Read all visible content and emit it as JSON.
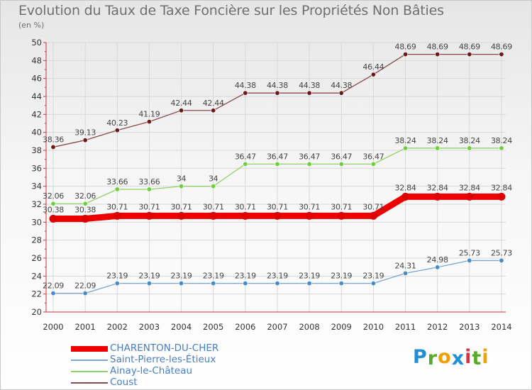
{
  "header": {
    "title": "Evolution du Taux de Taxe Foncière sur les Propriétés Non Bâties",
    "unit": "(en %)"
  },
  "logo": {
    "text": "Proxiti",
    "letter_colors": [
      "#1f8fd6",
      "#5aaa2a",
      "#f0a000",
      "#1f8fd6",
      "#e03040",
      "#5aaa2a",
      "#f0a000"
    ]
  },
  "chart_data": {
    "type": "line",
    "title": "Evolution du Taux de Taxe Foncière sur les Propriétés Non Bâties",
    "ylabel": "(en %)",
    "xlabel": "",
    "x": [
      "2000",
      "2001",
      "2002",
      "2003",
      "2004",
      "2005",
      "2006",
      "2007",
      "2008",
      "2009",
      "2010",
      "2011",
      "2012",
      "2013",
      "2014"
    ],
    "ylim": [
      20,
      50
    ],
    "yticks": [
      20,
      22,
      24,
      26,
      28,
      30,
      32,
      34,
      36,
      38,
      40,
      42,
      44,
      46,
      48,
      50
    ],
    "grid": true,
    "legend_position": "bottom-left",
    "series": [
      {
        "name": "Coust",
        "color": "#8b4a4a",
        "marker": "#6b1a1a",
        "values": [
          38.36,
          39.13,
          40.23,
          41.19,
          42.44,
          42.44,
          44.38,
          44.38,
          44.38,
          44.38,
          46.44,
          48.69,
          48.69,
          48.69,
          48.69
        ],
        "labels": [
          "38.36",
          "39.13",
          "40.23",
          "41.19",
          "42.44",
          "42.44",
          "44.38",
          "44.38",
          "44.38",
          "44.38",
          "46.44",
          "48.69",
          "48.69",
          "48.69",
          "48.69"
        ]
      },
      {
        "name": "Ainay-le-Château",
        "color": "#8fd16a",
        "marker": "#6fcf3a",
        "values": [
          32.06,
          32.06,
          33.66,
          33.66,
          34,
          34,
          36.47,
          36.47,
          36.47,
          36.47,
          36.47,
          38.24,
          38.24,
          38.24,
          38.24
        ],
        "labels": [
          "32.06",
          "32.06",
          "33.66",
          "33.66",
          "34",
          "34",
          "36.47",
          "36.47",
          "36.47",
          "36.47",
          "36.47",
          "38.24",
          "38.24",
          "38.24",
          "38.24"
        ]
      },
      {
        "name": "CHARENTON-DU-CHER",
        "color": "#ee0000",
        "marker": "#dd0000",
        "values": [
          30.38,
          30.38,
          30.71,
          30.71,
          30.71,
          30.71,
          30.71,
          30.71,
          30.71,
          30.71,
          30.71,
          32.84,
          32.84,
          32.84,
          32.84
        ],
        "labels": [
          "30.38",
          "30.38",
          "30.71",
          "30.71",
          "30.71",
          "30.71",
          "30.71",
          "30.71",
          "30.71",
          "30.71",
          "30.71",
          "32.84",
          "32.84",
          "32.84",
          "32.84"
        ]
      },
      {
        "name": "Saint-Pierre-les-Étieux",
        "color": "#7aa6d6",
        "marker": "#4a8ac8",
        "values": [
          22.09,
          22.09,
          23.19,
          23.19,
          23.19,
          23.19,
          23.19,
          23.19,
          23.19,
          23.19,
          23.19,
          24.31,
          24.98,
          25.73,
          25.73
        ],
        "labels": [
          "22.09",
          "22.09",
          "23.19",
          "23.19",
          "23.19",
          "23.19",
          "23.19",
          "23.19",
          "23.19",
          "23.19",
          "23.19",
          "24.31",
          "24.98",
          "25.73",
          "25.73"
        ]
      }
    ],
    "legend": [
      {
        "name": "CHARENTON-DU-CHER",
        "color": "#ee0000"
      },
      {
        "name": "Saint-Pierre-les-Étieux",
        "color": "#7aa6d6"
      },
      {
        "name": "Ainay-le-Château",
        "color": "#8fd16a"
      },
      {
        "name": "Coust",
        "color": "#8b4a4a"
      }
    ]
  }
}
